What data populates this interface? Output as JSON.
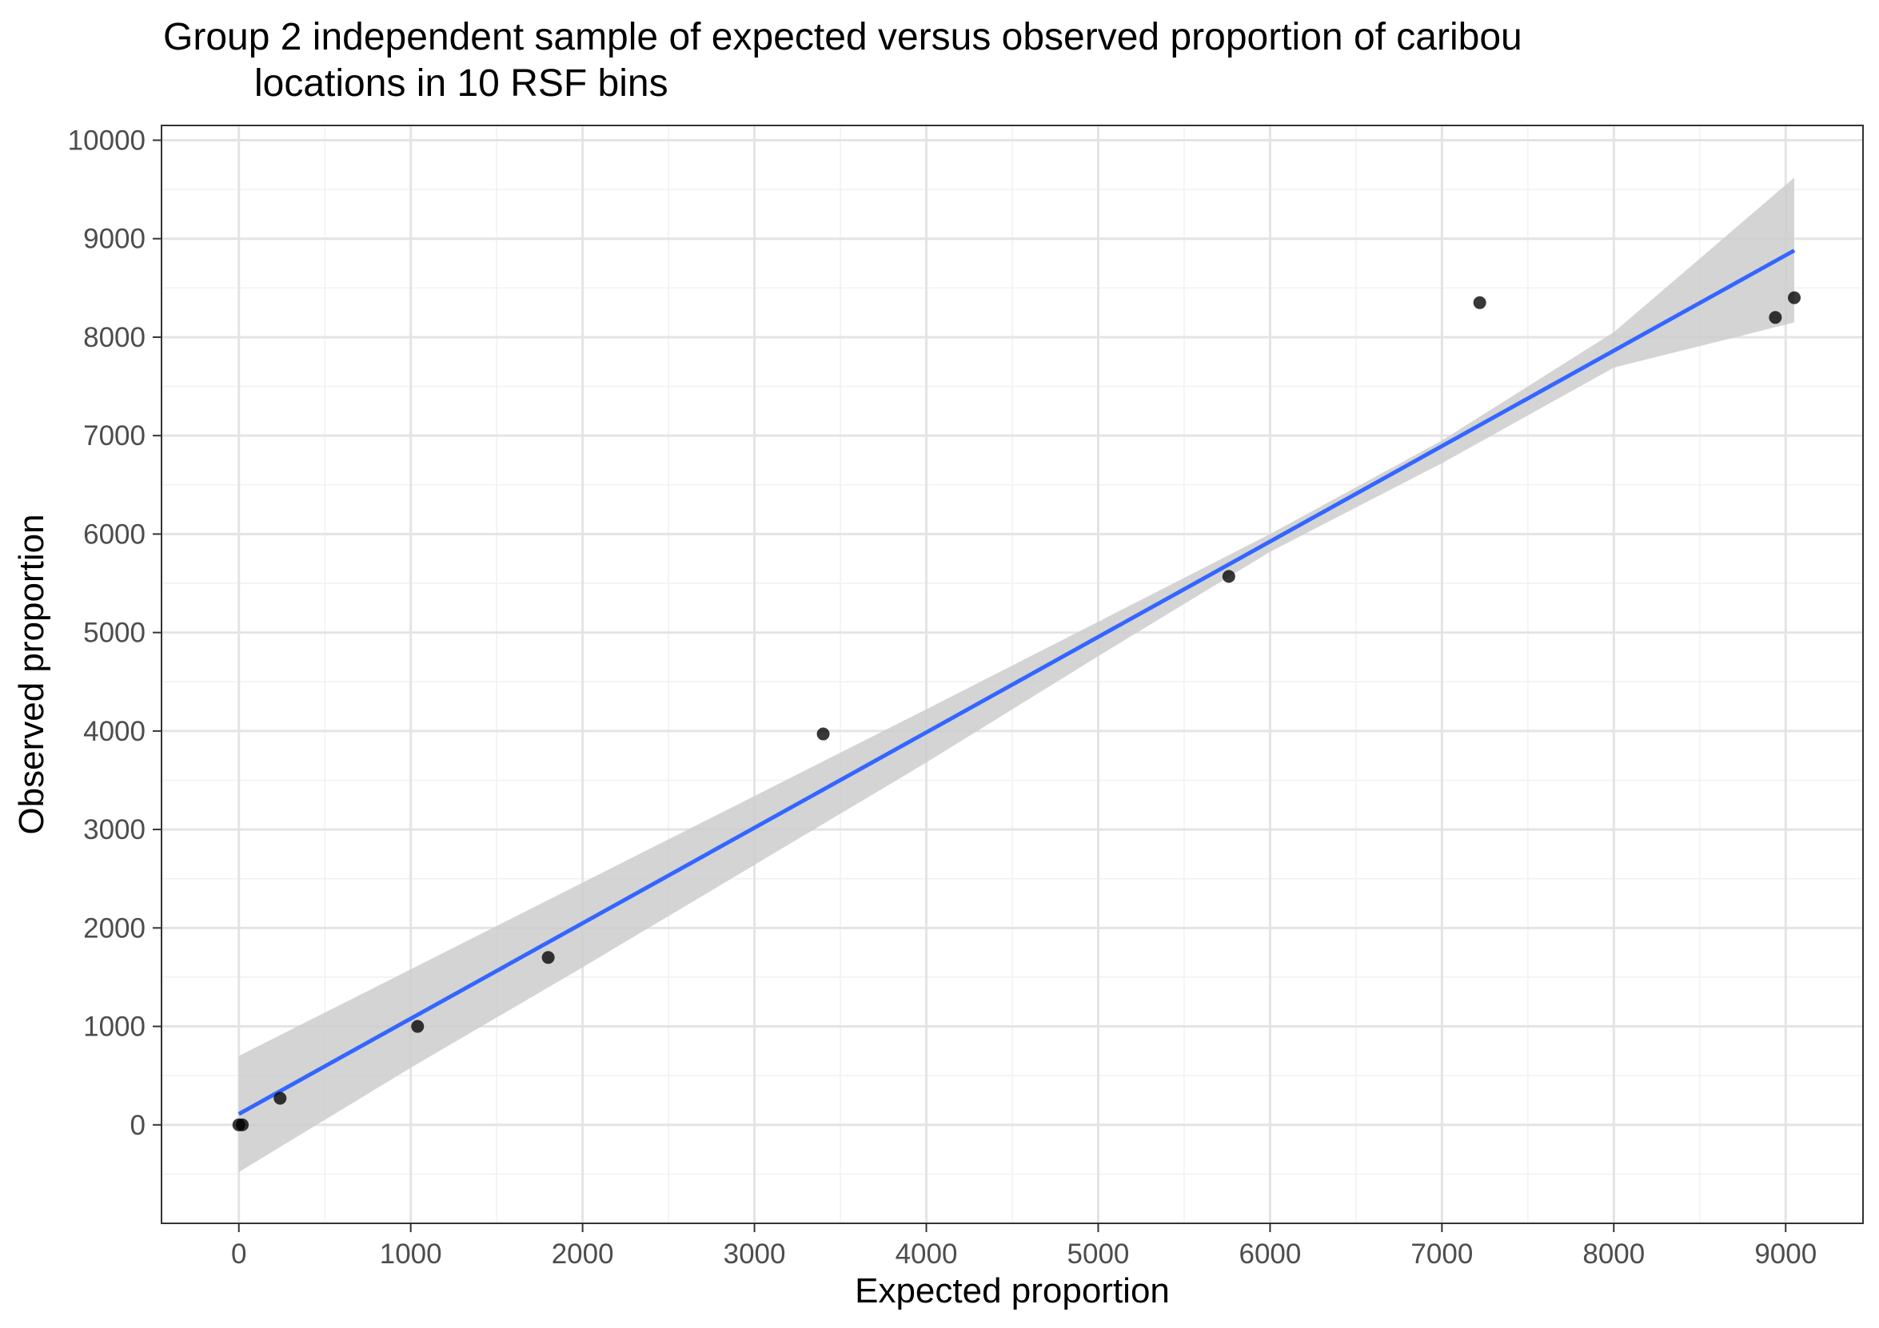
{
  "chart_data": {
    "type": "scatter",
    "title_lines": [
      "Group 2 independent sample of expected versus observed proportion of caribou",
      "locations in 10 RSF bins"
    ],
    "xlabel": "Expected proportion",
    "ylabel": "Observed proportion",
    "xlim": [
      -450,
      9450
    ],
    "ylim": [
      -1000,
      10150
    ],
    "x_ticks": [
      0,
      1000,
      2000,
      3000,
      4000,
      5000,
      6000,
      7000,
      8000,
      9000
    ],
    "y_ticks": [
      0,
      1000,
      2000,
      3000,
      4000,
      5000,
      6000,
      7000,
      8000,
      9000,
      10000
    ],
    "x_minor_ticks": [
      500,
      1500,
      2500,
      3500,
      4500,
      5500,
      6500,
      7500,
      8500
    ],
    "y_minor_ticks": [
      -500,
      500,
      1500,
      2500,
      3500,
      4500,
      5500,
      6500,
      7500,
      8500,
      9500
    ],
    "grid": true,
    "points": {
      "x": [
        0,
        20,
        240,
        1040,
        1800,
        3400,
        5760,
        7220,
        8940,
        9050
      ],
      "y": [
        0,
        0,
        270,
        1000,
        1700,
        3970,
        5570,
        8350,
        8200,
        8400
      ],
      "color": "#000000"
    },
    "fit_line": {
      "x": [
        0,
        9050
      ],
      "y": [
        110,
        8880
      ],
      "color": "#3366ff"
    },
    "confidence_band": {
      "x": [
        0,
        1000,
        2000,
        3000,
        4000,
        5000,
        6000,
        7000,
        8000,
        9050
      ],
      "upper": [
        700,
        1580,
        2460,
        3340,
        4220,
        5110,
        6000,
        6950,
        8050,
        9620
      ],
      "lower": [
        -480,
        580,
        1600,
        2640,
        3680,
        4760,
        5820,
        6720,
        7690,
        8150
      ],
      "color": "#cccccc"
    }
  }
}
